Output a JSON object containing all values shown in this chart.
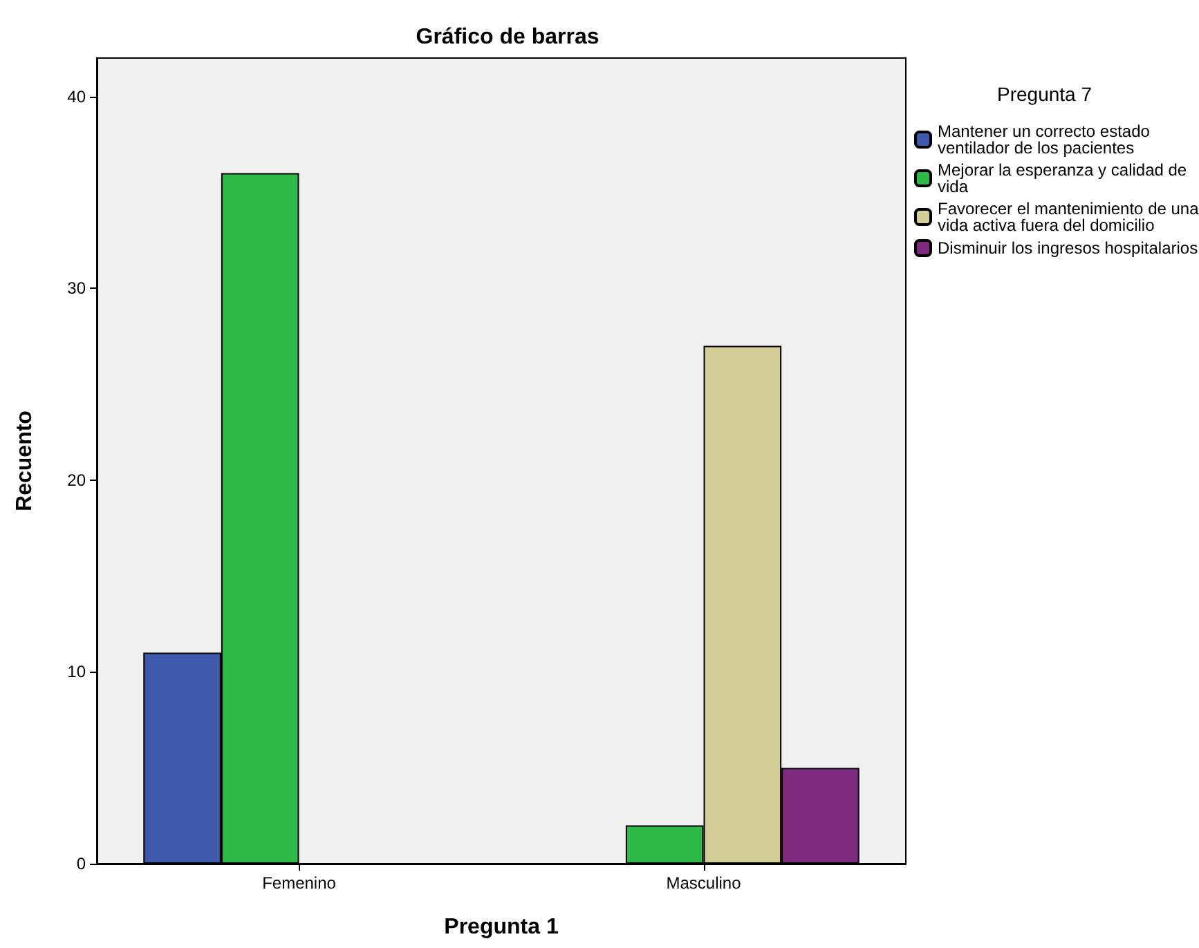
{
  "chart_data": {
    "type": "bar",
    "title": "Gráfico de barras",
    "xlabel": "Pregunta 1",
    "ylabel": "Recuento",
    "legend_title": "Pregunta 7",
    "categories": [
      "Femenino",
      "Masculino"
    ],
    "series": [
      {
        "name": "Mantener un correcto estado ventilador de los pacientes",
        "color": "#3e58ac",
        "values": [
          11,
          null
        ]
      },
      {
        "name": "Mejorar la esperanza y calidad de vida",
        "color": "#2eb848",
        "values": [
          36,
          2
        ]
      },
      {
        "name": "Favorecer el mantenimiento de una vida activa fuera del domicilio",
        "color": "#d3ce97",
        "values": [
          null,
          27
        ]
      },
      {
        "name": "Disminuir los ingresos hospitalarios",
        "color": "#7e2a7e",
        "values": [
          null,
          5
        ]
      }
    ],
    "ylim": [
      0,
      42
    ],
    "yticks": [
      0,
      10,
      20,
      30,
      40
    ],
    "grid": false,
    "legend": "top right"
  }
}
